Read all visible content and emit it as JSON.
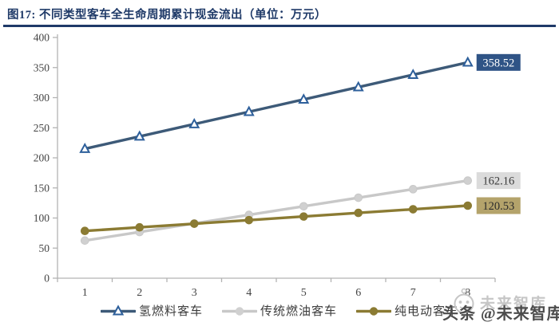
{
  "header": {
    "title": "图17:  不同类型客车全生命周期累计现金流出（单位：万元）"
  },
  "watermark": {
    "main": "头条 @未来智库",
    "ghost": "未来智库",
    "logo_icon": "robot-face-icon"
  },
  "colors": {
    "title": "#1f3a68",
    "title_rule": "#1f3a68",
    "axis": "#b3b3b3",
    "tick_label": "#444444",
    "legend_text": "#3d3d3d",
    "watermark_main": "#4c4c4c",
    "watermark_ghost": "#c6c6c6"
  },
  "chart_data": {
    "type": "line",
    "title": "不同类型客车全生命周期累计现金流出",
    "unit": "万元",
    "x": [
      "1",
      "2",
      "3",
      "4",
      "5",
      "6",
      "7",
      "8"
    ],
    "xlabel": "",
    "ylabel": "",
    "ylim": [
      0,
      400
    ],
    "ytick_step": 50,
    "grid": false,
    "legend_position": "bottom",
    "series": [
      {
        "name": "氢燃料客车",
        "values": [
          215.0,
          235.5,
          256.0,
          276.5,
          297.0,
          317.5,
          338.0,
          358.52
        ],
        "end_label": "358.52",
        "line_color": "#3d5a78",
        "marker": "triangle",
        "marker_fill": "#ffffff",
        "marker_stroke": "#2d5f9b",
        "label_bg": "#2f5486",
        "label_text_color": "#ffffff"
      },
      {
        "name": "传统燃油客车",
        "values": [
          62.5,
          76.7,
          91.0,
          105.2,
          119.5,
          133.7,
          147.9,
          162.16
        ],
        "end_label": "162.16",
        "line_color": "#c8c8c8",
        "marker": "circle",
        "marker_fill": "#d0d0d0",
        "marker_stroke": "#c8c8c8",
        "label_bg": "#dbdbdb",
        "label_text_color": "#3a3a3a"
      },
      {
        "name": "纯电动客车",
        "values": [
          78.5,
          84.5,
          90.5,
          96.5,
          102.5,
          108.5,
          114.5,
          120.53
        ],
        "end_label": "120.53",
        "line_color": "#8b7b33",
        "marker": "circle",
        "marker_fill": "#8b7b33",
        "marker_stroke": "#8b7b33",
        "label_bg": "#b4a36b",
        "label_text_color": "#2b2b2b"
      }
    ]
  }
}
